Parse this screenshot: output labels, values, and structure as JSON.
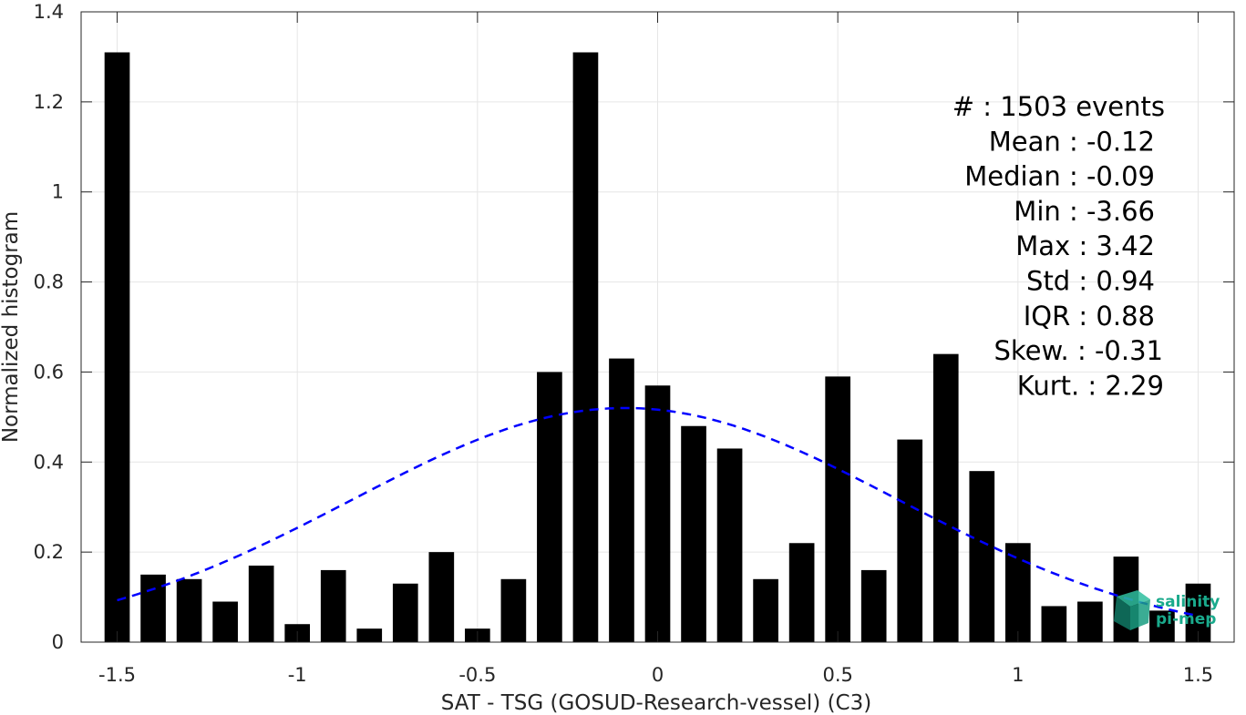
{
  "chart_data": {
    "type": "bar",
    "title": "",
    "xlabel": "SAT - TSG (GOSUD-Research-vessel) (C3)",
    "ylabel": "Normalized histogram",
    "xlim": [
      -1.6,
      1.6
    ],
    "ylim": [
      0,
      1.4
    ],
    "grid": true,
    "x_ticks": [
      -1.5,
      -1,
      -0.5,
      0,
      0.5,
      1,
      1.5
    ],
    "x_tick_labels": [
      "-1.5",
      "-1",
      "-0.5",
      "0",
      "0.5",
      "1",
      "1.5"
    ],
    "y_ticks": [
      0,
      0.2,
      0.4,
      0.6,
      0.8,
      1,
      1.2,
      1.4
    ],
    "y_tick_labels": [
      "0",
      "0.2",
      "0.4",
      "0.6",
      "0.8",
      "1",
      "1.2",
      "1.4"
    ],
    "bar_width": 0.07,
    "bars": {
      "x": [
        -1.5,
        -1.4,
        -1.3,
        -1.2,
        -1.1,
        -1.0,
        -0.9,
        -0.8,
        -0.7,
        -0.6,
        -0.5,
        -0.4,
        -0.3,
        -0.2,
        -0.1,
        0.0,
        0.1,
        0.2,
        0.3,
        0.4,
        0.5,
        0.6,
        0.7,
        0.8,
        0.9,
        1.0,
        1.1,
        1.2,
        1.3,
        1.4,
        1.5
      ],
      "values": [
        1.31,
        0.15,
        0.14,
        0.09,
        0.17,
        0.04,
        0.16,
        0.03,
        0.13,
        0.2,
        0.03,
        0.14,
        0.6,
        1.31,
        0.63,
        0.57,
        0.48,
        0.43,
        0.14,
        0.22,
        0.59,
        0.16,
        0.45,
        0.64,
        0.38,
        0.22,
        0.08,
        0.09,
        0.19,
        0.07,
        0.13
      ]
    },
    "fit_curve": {
      "style": "dashed",
      "color": "#0000ff",
      "distribution": "normal",
      "mean": -0.09,
      "amplitude": 0.52,
      "sigma": 0.76,
      "x_range": [
        -1.5,
        1.5
      ]
    },
    "bar_color": "#000000",
    "stats_annotation": [
      "#  : 1503 events",
      "Mean : -0.12",
      "Median : -0.09",
      "Min : -3.66",
      "Max : 3.42",
      "Std : 0.94",
      "IQR : 0.88",
      "Skew. : -0.31",
      "Kurt. : 2.29"
    ]
  },
  "logo": {
    "line1": "salinity",
    "line2": "pi-mep",
    "color": "#1aaa8c"
  }
}
